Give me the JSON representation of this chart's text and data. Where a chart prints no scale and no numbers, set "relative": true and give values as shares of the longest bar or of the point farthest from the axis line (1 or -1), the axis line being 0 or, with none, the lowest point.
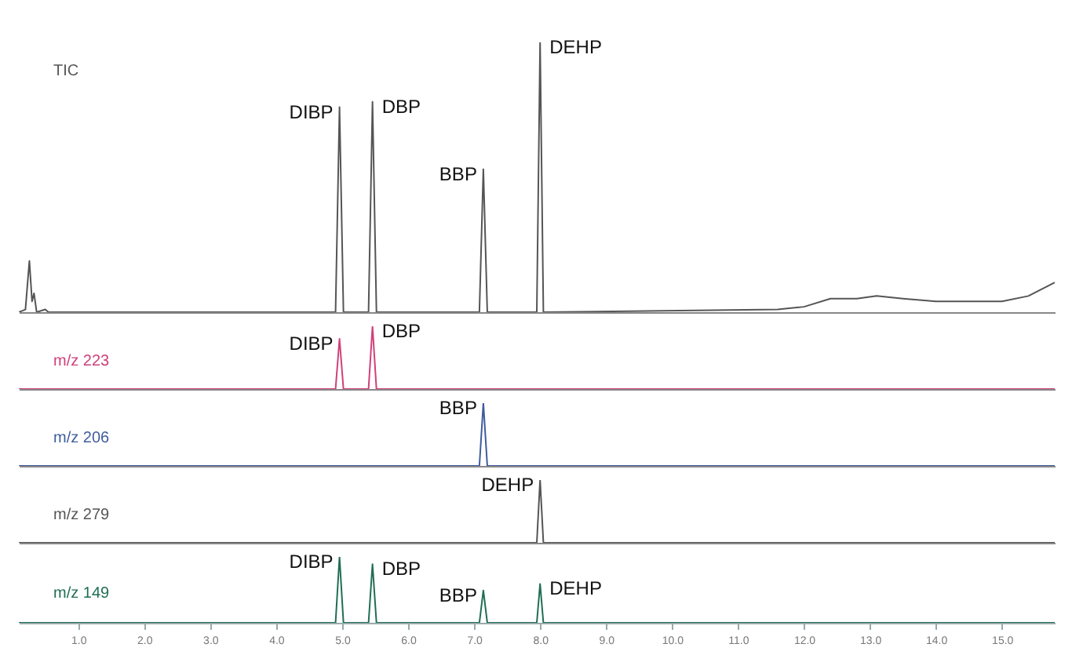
{
  "chart_data": [
    {
      "type": "line",
      "relative": true,
      "xlim": [
        0.1,
        15.8
      ],
      "tick_labels": false,
      "x": [
        0.1,
        0.2,
        0.26,
        0.3,
        0.33,
        0.37,
        0.5,
        0.55,
        4.9,
        4.96,
        5.02,
        5.4,
        5.46,
        5.52,
        7.08,
        7.14,
        7.2,
        7.95,
        8.0,
        8.05,
        11.6,
        12.0,
        12.4,
        12.8,
        13.1,
        13.5,
        14.0,
        15.0,
        15.4,
        15.8
      ],
      "series": [
        {
          "name": "TIC",
          "color": "#555555",
          "values": [
            0,
            0.01,
            0.19,
            0.04,
            0.07,
            0,
            0.01,
            0,
            0,
            0.76,
            0,
            0,
            0.78,
            0,
            0,
            0.53,
            0,
            0,
            1,
            0,
            0.01,
            0.02,
            0.05,
            0.05,
            0.06,
            0.05,
            0.04,
            0.04,
            0.06,
            0.11
          ]
        }
      ],
      "annotations": [
        {
          "text": "DIBP",
          "x": 4.96,
          "y": 0.76
        },
        {
          "text": "DBP",
          "x": 5.46,
          "y": 0.78
        },
        {
          "text": "BBP",
          "x": 7.14,
          "y": 0.53
        },
        {
          "text": "DEHP",
          "x": 8.0,
          "y": 1
        }
      ]
    },
    {
      "type": "line",
      "relative": true,
      "xlim": [
        0.1,
        15.8
      ],
      "tick_labels": false,
      "x": [
        0.1,
        4.9,
        4.96,
        5.02,
        5.4,
        5.46,
        5.52,
        15.8
      ],
      "series": [
        {
          "name": "m/z 223",
          "color": "#d0407a",
          "values": [
            0,
            0,
            0.8,
            0,
            0,
            1,
            0,
            0
          ]
        }
      ],
      "annotations": [
        {
          "text": "DIBP",
          "x": 4.96,
          "y": 0.8
        },
        {
          "text": "DBP",
          "x": 5.46,
          "y": 1
        }
      ]
    },
    {
      "type": "line",
      "relative": true,
      "xlim": [
        0.1,
        15.8
      ],
      "tick_labels": false,
      "x": [
        0.1,
        7.08,
        7.14,
        7.2,
        15.8
      ],
      "series": [
        {
          "name": "m/z 206",
          "color": "#3f5c9e",
          "values": [
            0,
            0,
            1,
            0,
            0
          ]
        }
      ],
      "annotations": [
        {
          "text": "BBP",
          "x": 7.14,
          "y": 1
        }
      ]
    },
    {
      "type": "line",
      "relative": true,
      "xlim": [
        0.1,
        15.8
      ],
      "tick_labels": false,
      "x": [
        0.1,
        7.95,
        8.0,
        8.05,
        15.8
      ],
      "series": [
        {
          "name": "m/z 279",
          "color": "#555555",
          "values": [
            0,
            0,
            1,
            0,
            0
          ]
        }
      ],
      "annotations": [
        {
          "text": "DEHP",
          "x": 8.0,
          "y": 1
        }
      ]
    },
    {
      "type": "line",
      "relative": true,
      "xlim": [
        0.1,
        15.8
      ],
      "tick_labels": "x",
      "xticks": [
        {
          "value": 1,
          "label": "1.0"
        },
        {
          "value": 2,
          "label": "2.0"
        },
        {
          "value": 3,
          "label": "3.0"
        },
        {
          "value": 4,
          "label": "4.0"
        },
        {
          "value": 5,
          "label": "5.0"
        },
        {
          "value": 6,
          "label": "6.0"
        },
        {
          "value": 7,
          "label": "7.0"
        },
        {
          "value": 8,
          "label": "8.0"
        },
        {
          "value": 9,
          "label": "9.0"
        },
        {
          "value": 10,
          "label": "10.0"
        },
        {
          "value": 11,
          "label": "11.0"
        },
        {
          "value": 12,
          "label": "12.0"
        },
        {
          "value": 13,
          "label": "13.0"
        },
        {
          "value": 14,
          "label": "14.0"
        },
        {
          "value": 15,
          "label": "15.0"
        }
      ],
      "x": [
        0.1,
        4.9,
        4.96,
        5.02,
        5.4,
        5.46,
        5.52,
        7.08,
        7.14,
        7.2,
        7.95,
        8.0,
        8.05,
        15.8
      ],
      "series": [
        {
          "name": "m/z 149",
          "color": "#1f6e55",
          "values": [
            0,
            0,
            1,
            0,
            0,
            0.89,
            0,
            0,
            0.49,
            0,
            0,
            0.59,
            0,
            0
          ]
        }
      ],
      "annotations": [
        {
          "text": "DIBP",
          "x": 4.96,
          "y": 1
        },
        {
          "text": "DBP",
          "x": 5.46,
          "y": 0.89
        },
        {
          "text": "BBP",
          "x": 7.14,
          "y": 0.49
        },
        {
          "text": "DEHP",
          "x": 8.0,
          "y": 0.59
        }
      ]
    }
  ]
}
